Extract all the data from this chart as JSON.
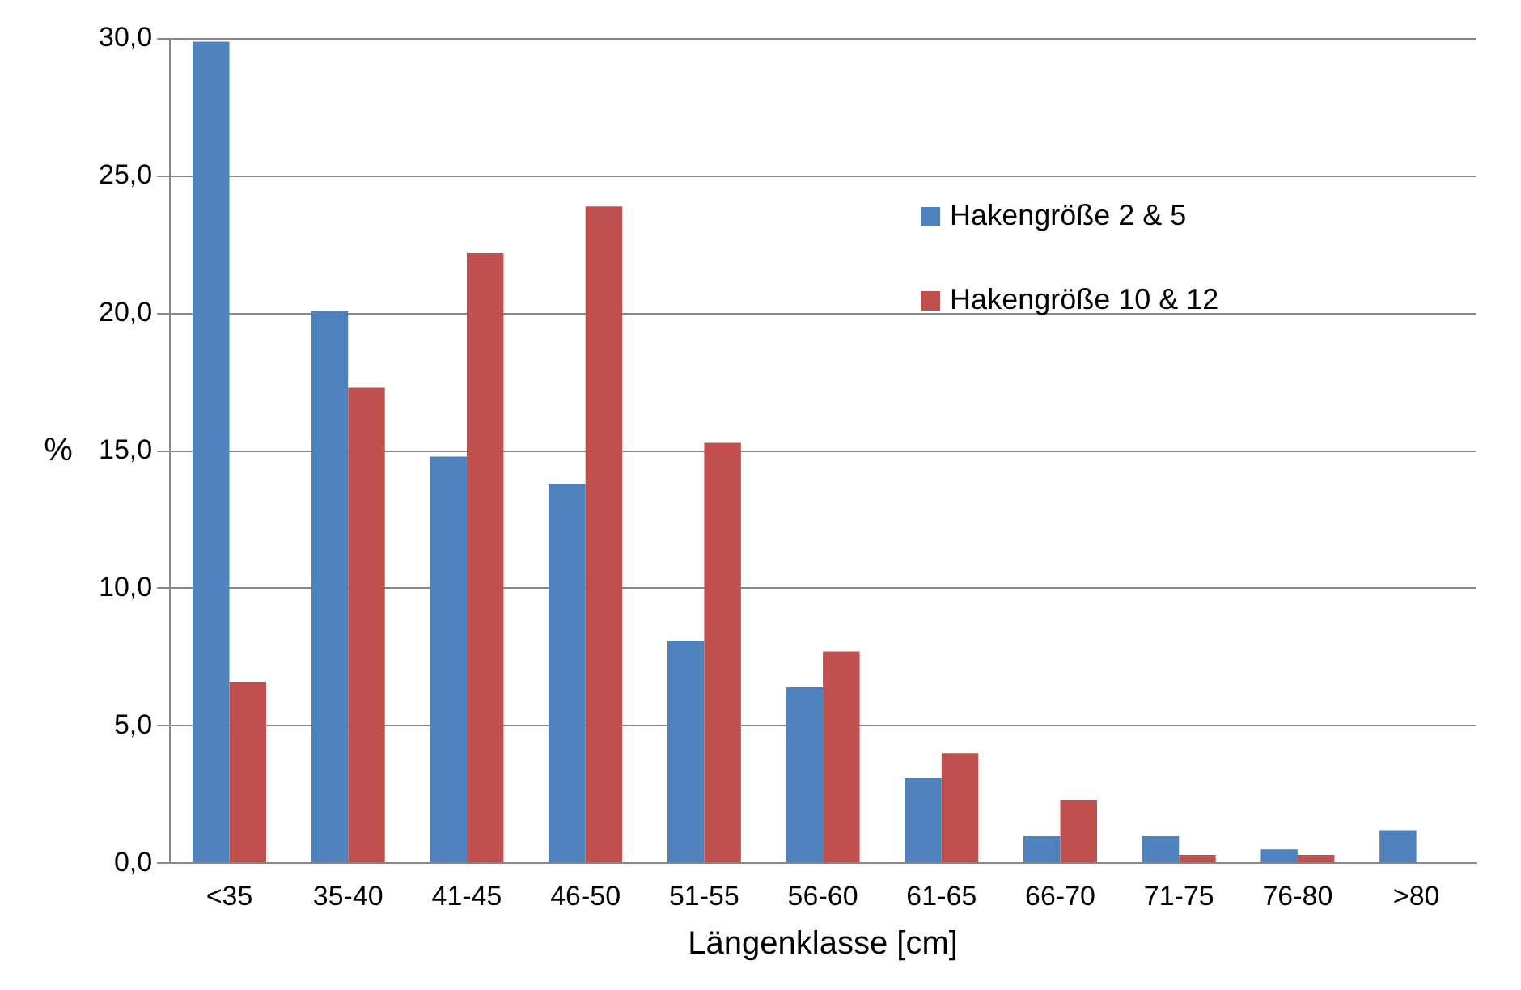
{
  "chart_data": {
    "type": "bar",
    "xlabel": "Längenklasse [cm]",
    "ylabel": "%",
    "categories": [
      "<35",
      "35-40",
      "41-45",
      "46-50",
      "51-55",
      "56-60",
      "61-65",
      "66-70",
      "71-75",
      "76-80",
      ">80"
    ],
    "series": [
      {
        "name": "Hakengröße 2 & 5",
        "color": "#4f81bd",
        "values": [
          29.9,
          20.1,
          14.8,
          13.8,
          8.1,
          6.4,
          3.1,
          1.0,
          1.0,
          0.5,
          1.2
        ]
      },
      {
        "name": "Hakengröße 10 & 12",
        "color": "#c0504d",
        "values": [
          6.6,
          17.3,
          22.2,
          23.9,
          15.3,
          7.7,
          4.0,
          2.3,
          0.3,
          0.3,
          0
        ]
      }
    ],
    "ylim": [
      0,
      30
    ],
    "yticks": [
      {
        "value": 0,
        "label": "0,0"
      },
      {
        "value": 5,
        "label": "5,0"
      },
      {
        "value": 10,
        "label": "10,0"
      },
      {
        "value": 15,
        "label": "15,0"
      },
      {
        "value": 20,
        "label": "20,0"
      },
      {
        "value": 25,
        "label": "25,0"
      },
      {
        "value": 30,
        "label": "30,0"
      }
    ],
    "grid": "y",
    "legend": "top right"
  }
}
